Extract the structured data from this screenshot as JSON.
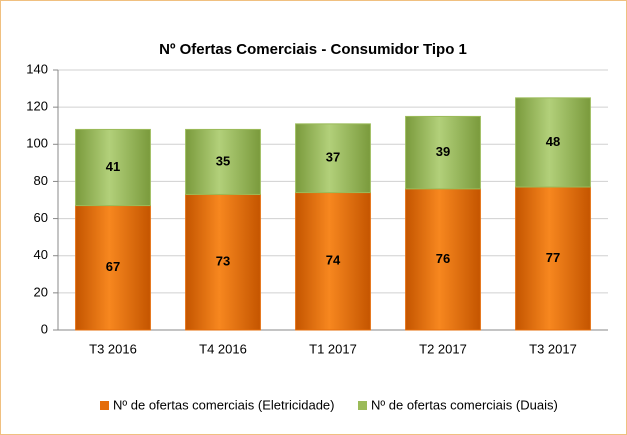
{
  "chart_data": {
    "type": "stacked-bar",
    "title": "Nº Ofertas Comerciais - Consumidor Tipo 1",
    "categories": [
      "T3 2016",
      "T4 2016",
      "T1 2017",
      "T2 2017",
      "T3 2017"
    ],
    "series": [
      {
        "name": "Nº de ofertas comerciais (Eletricidade)",
        "color": "#e46c0a",
        "values": [
          67,
          73,
          74,
          76,
          77
        ]
      },
      {
        "name": "Nº de ofertas comerciais (Duais)",
        "color": "#9bbb59",
        "values": [
          41,
          35,
          37,
          39,
          48
        ]
      }
    ],
    "ylim": [
      0,
      140
    ],
    "yticks": [
      0,
      20,
      40,
      60,
      80,
      100,
      120,
      140
    ],
    "grid": true,
    "legend": "bottom"
  }
}
